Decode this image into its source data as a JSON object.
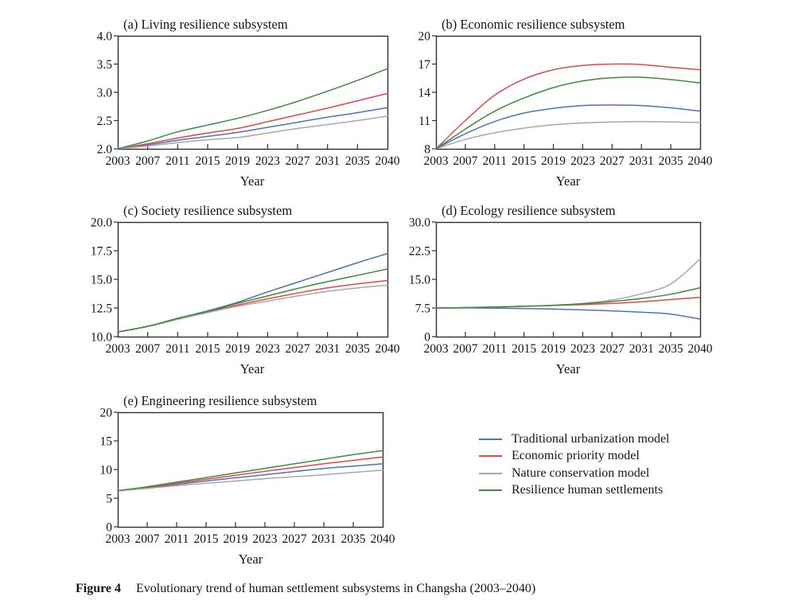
{
  "figure": {
    "caption_label": "Figure 4",
    "caption_text": "Evolutionary trend of human settlement subsystems in Changsha (2003–2040)"
  },
  "colors": {
    "blue": "#4a74ba",
    "red": "#e04848",
    "gray": "#a8a8a8",
    "green": "#3f8a3e",
    "axis": "#2f2f2f",
    "text": "#151515"
  },
  "legend": {
    "items": [
      {
        "label": "Traditional urbanization model",
        "color": "blue"
      },
      {
        "label": "Economic priority model",
        "color": "red"
      },
      {
        "label": "Nature conservation model",
        "color": "gray"
      },
      {
        "label": "Resilience human settlements",
        "color": "green"
      }
    ]
  },
  "chart_data": [
    {
      "id": "a",
      "type": "line",
      "title": "(a) Living resilience subsystem",
      "xlabel": "Year",
      "x": [
        2003,
        2007,
        2011,
        2015,
        2019,
        2023,
        2027,
        2031,
        2035,
        2040
      ],
      "xtick_labels": [
        "2003",
        "2007",
        "2011",
        "2015",
        "2019",
        "2023",
        "2027",
        "2031",
        "2035",
        "2040"
      ],
      "ylim": [
        2.0,
        4.0
      ],
      "yticks": [
        2.0,
        2.5,
        3.0,
        3.5,
        4.0
      ],
      "ytick_labels": [
        "2.0",
        "2.5",
        "3.0",
        "3.5",
        "4.0"
      ],
      "grid": false,
      "series": [
        {
          "name": "Traditional urbanization model",
          "color": "blue",
          "values": [
            2.0,
            2.07,
            2.15,
            2.22,
            2.29,
            2.38,
            2.47,
            2.56,
            2.64,
            2.73
          ]
        },
        {
          "name": "Economic priority model",
          "color": "red",
          "values": [
            2.0,
            2.09,
            2.19,
            2.28,
            2.36,
            2.48,
            2.6,
            2.72,
            2.85,
            2.98
          ]
        },
        {
          "name": "Nature conservation model",
          "color": "gray",
          "values": [
            2.0,
            2.05,
            2.11,
            2.16,
            2.2,
            2.28,
            2.36,
            2.43,
            2.5,
            2.58
          ]
        },
        {
          "name": "Resilience human settlements",
          "color": "green",
          "values": [
            2.0,
            2.14,
            2.3,
            2.42,
            2.54,
            2.68,
            2.84,
            3.02,
            3.21,
            3.42
          ]
        }
      ]
    },
    {
      "id": "b",
      "type": "line",
      "title": "(b) Economic resilience subsystem",
      "xlabel": "Year",
      "x": [
        2003,
        2007,
        2011,
        2015,
        2019,
        2023,
        2027,
        2031,
        2035,
        2040
      ],
      "xtick_labels": [
        "2003",
        "2007",
        "2011",
        "2015",
        "2019",
        "2023",
        "2027",
        "2031",
        "2035",
        "2040"
      ],
      "ylim": [
        8,
        20
      ],
      "yticks": [
        8,
        11,
        14,
        17,
        20
      ],
      "ytick_labels": [
        "8",
        "11",
        "14",
        "17",
        "20"
      ],
      "grid": false,
      "series": [
        {
          "name": "Traditional urbanization model",
          "color": "blue",
          "values": [
            8.0,
            9.6,
            10.9,
            11.8,
            12.3,
            12.6,
            12.65,
            12.6,
            12.35,
            12.0
          ]
        },
        {
          "name": "Economic priority model",
          "color": "red",
          "values": [
            8.0,
            11.0,
            13.7,
            15.4,
            16.4,
            16.85,
            17.0,
            16.95,
            16.65,
            16.4
          ]
        },
        {
          "name": "Nature conservation model",
          "color": "gray",
          "values": [
            8.0,
            9.0,
            9.7,
            10.2,
            10.55,
            10.75,
            10.85,
            10.9,
            10.85,
            10.8
          ]
        },
        {
          "name": "Resilience human settlements",
          "color": "green",
          "values": [
            8.0,
            10.1,
            12.0,
            13.4,
            14.5,
            15.2,
            15.55,
            15.6,
            15.35,
            15.0
          ]
        }
      ]
    },
    {
      "id": "c",
      "type": "line",
      "title": "(c) Society resilience subsystem",
      "xlabel": "Year",
      "x": [
        2003,
        2007,
        2011,
        2015,
        2019,
        2023,
        2027,
        2031,
        2035,
        2040
      ],
      "xtick_labels": [
        "2003",
        "2007",
        "2011",
        "2015",
        "2019",
        "2023",
        "2027",
        "2031",
        "2035",
        "2040"
      ],
      "ylim": [
        10.0,
        20.0
      ],
      "yticks": [
        10.0,
        12.5,
        15.0,
        17.5,
        20.0
      ],
      "ytick_labels": [
        "10.0",
        "12.5",
        "15.0",
        "17.5",
        "20.0"
      ],
      "grid": false,
      "series": [
        {
          "name": "Traditional urbanization model",
          "color": "blue",
          "values": [
            10.4,
            10.9,
            11.6,
            12.25,
            13.0,
            13.9,
            14.75,
            15.6,
            16.45,
            17.25
          ]
        },
        {
          "name": "Economic priority model",
          "color": "red",
          "values": [
            10.4,
            10.9,
            11.55,
            12.15,
            12.75,
            13.3,
            13.8,
            14.25,
            14.6,
            14.9
          ]
        },
        {
          "name": "Nature conservation model",
          "color": "gray",
          "values": [
            10.4,
            10.88,
            11.5,
            12.1,
            12.65,
            13.1,
            13.55,
            13.95,
            14.25,
            14.5
          ]
        },
        {
          "name": "Resilience human settlements",
          "color": "green",
          "values": [
            10.4,
            10.9,
            11.6,
            12.2,
            12.9,
            13.55,
            14.2,
            14.8,
            15.35,
            15.9
          ]
        }
      ]
    },
    {
      "id": "d",
      "type": "line",
      "title": "(d) Ecology resilience subsystem",
      "xlabel": "Year",
      "x": [
        2003,
        2007,
        2011,
        2015,
        2019,
        2023,
        2027,
        2031,
        2035,
        2040
      ],
      "xtick_labels": [
        "2003",
        "2007",
        "2011",
        "2015",
        "2019",
        "2023",
        "2027",
        "2031",
        "2035",
        "2040"
      ],
      "ylim": [
        0,
        30.0
      ],
      "yticks": [
        0,
        7.5,
        15.0,
        22.5,
        30.0
      ],
      "ytick_labels": [
        "0",
        "7.5",
        "15.0",
        "22.5",
        "30.0"
      ],
      "grid": false,
      "series": [
        {
          "name": "Traditional urbanization model",
          "color": "blue",
          "values": [
            7.5,
            7.5,
            7.45,
            7.35,
            7.2,
            7.0,
            6.75,
            6.4,
            5.9,
            4.6
          ]
        },
        {
          "name": "Economic priority model",
          "color": "red",
          "values": [
            7.5,
            7.6,
            7.75,
            7.95,
            8.15,
            8.4,
            8.7,
            9.1,
            9.7,
            10.3
          ]
        },
        {
          "name": "Nature conservation model",
          "color": "gray",
          "values": [
            7.5,
            7.55,
            7.7,
            7.9,
            8.2,
            8.7,
            9.6,
            11.2,
            13.8,
            20.3
          ]
        },
        {
          "name": "Resilience human settlements",
          "color": "green",
          "values": [
            7.5,
            7.6,
            7.75,
            7.95,
            8.2,
            8.6,
            9.2,
            10.0,
            11.1,
            12.8
          ]
        }
      ]
    },
    {
      "id": "e",
      "type": "line",
      "title": "(e) Engineering resilience subsystem",
      "xlabel": "Year",
      "x": [
        2003,
        2007,
        2011,
        2015,
        2019,
        2023,
        2027,
        2031,
        2035,
        2040
      ],
      "xtick_labels": [
        "2003",
        "2007",
        "2011",
        "2015",
        "2019",
        "2023",
        "2027",
        "2031",
        "2035",
        "2040"
      ],
      "ylim": [
        0,
        20
      ],
      "yticks": [
        0,
        5,
        10,
        15,
        20
      ],
      "ytick_labels": [
        "0",
        "5",
        "10",
        "15",
        "20"
      ],
      "grid": false,
      "series": [
        {
          "name": "Traditional urbanization model",
          "color": "blue",
          "values": [
            6.3,
            6.8,
            7.4,
            8.0,
            8.55,
            9.1,
            9.65,
            10.2,
            10.6,
            11.0
          ]
        },
        {
          "name": "Economic priority model",
          "color": "red",
          "values": [
            6.3,
            6.9,
            7.6,
            8.3,
            9.0,
            9.7,
            10.35,
            11.0,
            11.6,
            12.2
          ]
        },
        {
          "name": "Nature conservation model",
          "color": "gray",
          "values": [
            6.3,
            6.7,
            7.2,
            7.6,
            8.0,
            8.4,
            8.75,
            9.1,
            9.5,
            9.9
          ]
        },
        {
          "name": "Resilience human settlements",
          "color": "green",
          "values": [
            6.3,
            7.0,
            7.8,
            8.6,
            9.4,
            10.2,
            11.0,
            11.8,
            12.6,
            13.3
          ]
        }
      ]
    }
  ]
}
